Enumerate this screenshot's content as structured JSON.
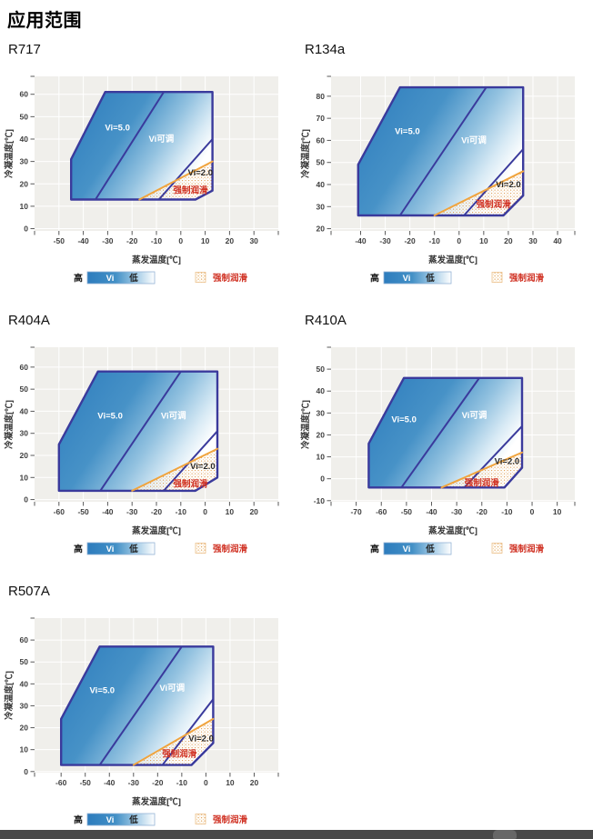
{
  "page": {
    "title": "应用范围"
  },
  "axis_titles": {
    "x": "蒸发温度[℃]",
    "y": "冷凝温度[℃]"
  },
  "legend": {
    "high_label": "高",
    "bar_label": "Vi",
    "low_label": "低",
    "forced_lube_label": "强制润滑"
  },
  "colors": {
    "envelope_border": "#3a3a9c",
    "gradient_start": "#2d7cbd",
    "gradient_end": "#ffffff",
    "forced_lube_line": "#f0a43e",
    "forced_lube_text": "#d03224",
    "region_label_white": "#ffffff",
    "region_label_dark": "#2a2a2a",
    "plot_background": "#f0efeb",
    "gridline": "#ffffff",
    "tick_text": "#3f3f3f",
    "bottom_bar": "#484848"
  },
  "chart_data": [
    {
      "type": "area",
      "name": "R717",
      "xlabel": "蒸发温度[℃]",
      "ylabel": "冷凝温度[℃]",
      "xlim": [
        -60,
        40
      ],
      "ylim": [
        -1,
        68
      ],
      "x_ticks": [
        -50,
        -40,
        -30,
        -20,
        -10,
        0,
        10,
        20,
        30
      ],
      "y_ticks": [
        0,
        10,
        20,
        30,
        40,
        50,
        60
      ],
      "envelope": [
        [
          -45,
          13
        ],
        [
          -45,
          31
        ],
        [
          -31,
          61
        ],
        [
          13,
          61
        ],
        [
          13,
          17
        ],
        [
          6,
          13
        ]
      ],
      "vi5_boundary": [
        [
          -35,
          13
        ],
        [
          -7,
          61
        ]
      ],
      "vi2_boundary": [
        [
          -9,
          13
        ],
        [
          13,
          40
        ]
      ],
      "forced_lube_line": [
        [
          -17,
          13
        ],
        [
          13,
          30
        ]
      ],
      "forced_lube_region": [
        [
          -17,
          13
        ],
        [
          6,
          13
        ],
        [
          13,
          17
        ],
        [
          13,
          30
        ]
      ],
      "region_labels": [
        {
          "text": "Vi=5.0",
          "x": -26,
          "y": 45,
          "style": "white"
        },
        {
          "text": "Vi可调",
          "x": -8,
          "y": 40,
          "style": "white"
        },
        {
          "text": "Vi=2.0",
          "x": 8,
          "y": 25,
          "style": "dark"
        },
        {
          "text": "强制润滑",
          "x": 4,
          "y": 17,
          "style": "red"
        }
      ]
    },
    {
      "type": "area",
      "name": "R134a",
      "xlabel": "蒸发温度[℃]",
      "ylabel": "冷凝温度[℃]",
      "xlim": [
        -52,
        47
      ],
      "ylim": [
        19,
        89
      ],
      "x_ticks": [
        -40,
        -30,
        -20,
        -10,
        0,
        10,
        20,
        30,
        40
      ],
      "y_ticks": [
        20,
        30,
        40,
        50,
        60,
        70,
        80
      ],
      "envelope": [
        [
          -41,
          26
        ],
        [
          -41,
          49
        ],
        [
          -24,
          84
        ],
        [
          26,
          84
        ],
        [
          26,
          35
        ],
        [
          18,
          26
        ]
      ],
      "vi5_boundary": [
        [
          -24,
          26
        ],
        [
          11,
          84
        ]
      ],
      "vi2_boundary": [
        [
          2,
          26
        ],
        [
          26,
          56
        ]
      ],
      "forced_lube_line": [
        [
          -10,
          26
        ],
        [
          26,
          46
        ]
      ],
      "forced_lube_region": [
        [
          -10,
          26
        ],
        [
          18,
          26
        ],
        [
          26,
          35
        ],
        [
          26,
          46
        ]
      ],
      "region_labels": [
        {
          "text": "Vi=5.0",
          "x": -21,
          "y": 64,
          "style": "white"
        },
        {
          "text": "Vi可调",
          "x": 6,
          "y": 60,
          "style": "white"
        },
        {
          "text": "Vi=2.0",
          "x": 20,
          "y": 40,
          "style": "dark"
        },
        {
          "text": "强制润滑",
          "x": 14,
          "y": 31,
          "style": "red"
        }
      ]
    },
    {
      "type": "area",
      "name": "R404A",
      "xlabel": "蒸发温度[℃]",
      "ylabel": "冷凝温度[℃]",
      "xlim": [
        -70,
        30
      ],
      "ylim": [
        -1,
        69
      ],
      "x_ticks": [
        -60,
        -50,
        -40,
        -30,
        -20,
        -10,
        0,
        10,
        20
      ],
      "y_ticks": [
        0,
        10,
        20,
        30,
        40,
        50,
        60
      ],
      "envelope": [
        [
          -60,
          4
        ],
        [
          -60,
          25
        ],
        [
          -44,
          58
        ],
        [
          5,
          58
        ],
        [
          5,
          10
        ],
        [
          -4,
          4
        ]
      ],
      "vi5_boundary": [
        [
          -43,
          4
        ],
        [
          -10,
          58
        ]
      ],
      "vi2_boundary": [
        [
          -17,
          4
        ],
        [
          5,
          31
        ]
      ],
      "forced_lube_line": [
        [
          -30,
          4
        ],
        [
          5,
          23
        ]
      ],
      "forced_lube_region": [
        [
          -30,
          4
        ],
        [
          -4,
          4
        ],
        [
          5,
          10
        ],
        [
          5,
          23
        ]
      ],
      "region_labels": [
        {
          "text": "Vi=5.0",
          "x": -39,
          "y": 38,
          "style": "white"
        },
        {
          "text": "Vi可调",
          "x": -13,
          "y": 38,
          "style": "white"
        },
        {
          "text": "Vi=2.0",
          "x": -1,
          "y": 15,
          "style": "dark"
        },
        {
          "text": "强制润滑",
          "x": -6,
          "y": 7,
          "style": "red"
        }
      ]
    },
    {
      "type": "area",
      "name": "R410A",
      "xlabel": "蒸发温度[℃]",
      "ylabel": "冷凝温度[℃]",
      "xlim": [
        -80,
        17
      ],
      "ylim": [
        -10.5,
        60
      ],
      "x_ticks": [
        -70,
        -60,
        -50,
        -40,
        -30,
        -20,
        -10,
        0,
        10
      ],
      "y_ticks": [
        -10,
        0,
        10,
        20,
        30,
        40,
        50
      ],
      "envelope": [
        [
          -65,
          -4
        ],
        [
          -65,
          16
        ],
        [
          -51,
          46
        ],
        [
          -4,
          46
        ],
        [
          -4,
          5
        ],
        [
          -11,
          -4
        ]
      ],
      "vi5_boundary": [
        [
          -52,
          -4
        ],
        [
          -21,
          46
        ]
      ],
      "vi2_boundary": [
        [
          -27,
          -4
        ],
        [
          -4,
          24
        ]
      ],
      "forced_lube_line": [
        [
          -36,
          -4
        ],
        [
          -4,
          12
        ]
      ],
      "forced_lube_region": [
        [
          -36,
          -4
        ],
        [
          -11,
          -4
        ],
        [
          -4,
          5
        ],
        [
          -4,
          12
        ]
      ],
      "region_labels": [
        {
          "text": "Vi=5.0",
          "x": -51,
          "y": 27,
          "style": "white"
        },
        {
          "text": "Vi可调",
          "x": -23,
          "y": 29,
          "style": "white"
        },
        {
          "text": "Vi=2.0",
          "x": -10,
          "y": 8,
          "style": "dark"
        },
        {
          "text": "强制润滑",
          "x": -20,
          "y": -2,
          "style": "red"
        }
      ]
    },
    {
      "type": "area",
      "name": "R507A",
      "xlabel": "蒸发温度[℃]",
      "ylabel": "冷凝温度[℃]",
      "xlim": [
        -71,
        30
      ],
      "ylim": [
        -0.5,
        70
      ],
      "x_ticks": [
        -60,
        -50,
        -40,
        -30,
        -20,
        -10,
        0,
        10,
        20
      ],
      "y_ticks": [
        0,
        10,
        20,
        30,
        40,
        50,
        60
      ],
      "envelope": [
        [
          -60,
          3
        ],
        [
          -60,
          24
        ],
        [
          -44,
          57
        ],
        [
          3,
          57
        ],
        [
          3,
          13
        ],
        [
          -6,
          3
        ]
      ],
      "vi5_boundary": [
        [
          -44,
          3
        ],
        [
          -10,
          57
        ]
      ],
      "vi2_boundary": [
        [
          -18,
          3
        ],
        [
          3,
          33
        ]
      ],
      "forced_lube_line": [
        [
          -30,
          3
        ],
        [
          3,
          24
        ]
      ],
      "forced_lube_region": [
        [
          -30,
          3
        ],
        [
          -6,
          3
        ],
        [
          3,
          13
        ],
        [
          3,
          24
        ]
      ],
      "region_labels": [
        {
          "text": "Vi=5.0",
          "x": -43,
          "y": 37,
          "style": "white"
        },
        {
          "text": "Vi可调",
          "x": -14,
          "y": 38,
          "style": "white"
        },
        {
          "text": "Vi=2.0",
          "x": -2,
          "y": 15,
          "style": "dark"
        },
        {
          "text": "强制润滑",
          "x": -11,
          "y": 8,
          "style": "red"
        }
      ]
    }
  ]
}
